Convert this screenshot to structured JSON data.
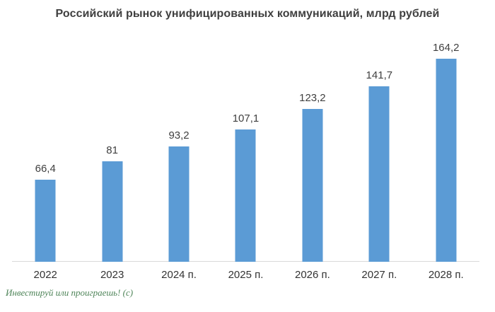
{
  "watermark": "Инвестируй или проиграешь! (с)",
  "chart_data": {
    "type": "bar",
    "title": "Российский рынок унифицированных коммуникаций, млрд рублей",
    "categories": [
      "2022",
      "2023",
      "2024 п.",
      "2025 п.",
      "2026 п.",
      "2027 п.",
      "2028 п."
    ],
    "values": [
      66.4,
      81,
      93.2,
      107.1,
      123.2,
      141.7,
      164.2
    ],
    "value_labels": [
      "66,4",
      "81",
      "93,2",
      "107,1",
      "123,2",
      "141,7",
      "164,2"
    ],
    "xlabel": "",
    "ylabel": "",
    "ylim": [
      0,
      180
    ],
    "grid": false,
    "legend": false,
    "bar_color": "#5B9BD5"
  },
  "colors": {
    "bar": "#5B9BD5",
    "title_text": "#3f3f3f",
    "value_text": "#404040",
    "axis_text": "#333333",
    "axis_line": "#d9d9d9",
    "watermark": "#4e8458",
    "background": "#ffffff"
  }
}
